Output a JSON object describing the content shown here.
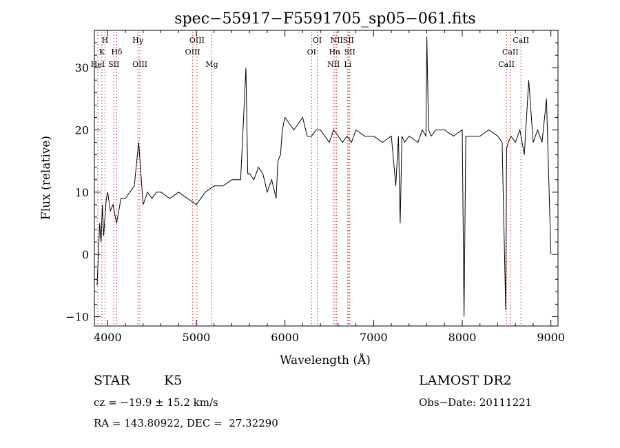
{
  "chart_data": {
    "type": "line",
    "title": "spec−55917−F5591705_sp05−061.fits",
    "xlabel": "Wavelength (Å)",
    "ylabel": "Flux (relative)",
    "xlim": [
      3850,
      9080
    ],
    "ylim": [
      -11.5,
      36
    ],
    "x_ticks": [
      4000,
      5000,
      6000,
      7000,
      8000,
      9000
    ],
    "y_ticks": [
      -10,
      0,
      10,
      20,
      30
    ],
    "x_tick_labels": [
      "4000",
      "5000",
      "6000",
      "7000",
      "8000",
      "9000"
    ],
    "y_tick_labels": [
      "−10",
      "0",
      "10",
      "20",
      "30"
    ],
    "grid": false,
    "line_color": "#000000",
    "marker_color": "#cc2222",
    "spectral_lines": [
      {
        "label": "H",
        "x": 3970,
        "row": 0
      },
      {
        "label": "K",
        "x": 3934,
        "row": 1
      },
      {
        "label": "HeI",
        "x": 3889,
        "row": 2
      },
      {
        "label": "Hδ",
        "x": 4102,
        "row": 1
      },
      {
        "label": "SII",
        "x": 4069,
        "row": 2
      },
      {
        "label": "Hγ",
        "x": 4341,
        "row": 0
      },
      {
        "label": "OIII",
        "x": 4363,
        "row": 2
      },
      {
        "label": "OIII",
        "x": 5007,
        "row": 0
      },
      {
        "label": "OIII",
        "x": 4959,
        "row": 1
      },
      {
        "label": "Mg",
        "x": 5175,
        "row": 2
      },
      {
        "label": "OI",
        "x": 6364,
        "row": 0
      },
      {
        "label": "OI",
        "x": 6300,
        "row": 1
      },
      {
        "label": "NII",
        "x": 6583,
        "row": 0
      },
      {
        "label": "SII",
        "x": 6716,
        "row": 0
      },
      {
        "label": "Hα",
        "x": 6563,
        "row": 1
      },
      {
        "label": "SII",
        "x": 6731,
        "row": 1
      },
      {
        "label": "NII",
        "x": 6548,
        "row": 2
      },
      {
        "label": "Li",
        "x": 6708,
        "row": 2
      },
      {
        "label": "CaII",
        "x": 8662,
        "row": 0
      },
      {
        "label": "CaII",
        "x": 8542,
        "row": 1
      },
      {
        "label": "CaII",
        "x": 8498,
        "row": 2
      }
    ],
    "series": [
      {
        "x": [
          3880,
          3895,
          3910,
          3925,
          3940,
          3955,
          3970,
          3985,
          4000,
          4030,
          4060,
          4100,
          4150,
          4200,
          4250,
          4300,
          4350,
          4400,
          4450,
          4500,
          4550,
          4600,
          4700,
          4800,
          4900,
          5000,
          5100,
          5200,
          5300,
          5400,
          5500,
          5560,
          5580,
          5600,
          5650,
          5700,
          5750,
          5800,
          5850,
          5900,
          5920,
          5950,
          5970,
          6000,
          6050,
          6100,
          6150,
          6200,
          6250,
          6300,
          6350,
          6400,
          6450,
          6500,
          6550,
          6600,
          6650,
          6700,
          6750,
          6800,
          6900,
          7000,
          7100,
          7200,
          7250,
          7280,
          7300,
          7320,
          7350,
          7400,
          7500,
          7550,
          7590,
          7600,
          7620,
          7650,
          7700,
          7800,
          7900,
          8000,
          8020,
          8040,
          8100,
          8200,
          8300,
          8400,
          8450,
          8490,
          8500,
          8520,
          8550,
          8600,
          8650,
          8700,
          8750,
          8800,
          8850,
          8900,
          8950,
          9000
        ],
        "y": [
          -5,
          0,
          5,
          2,
          8,
          3,
          6,
          9,
          10,
          7,
          8,
          5,
          9,
          9,
          10,
          11,
          18,
          8,
          10,
          9,
          10,
          10,
          9,
          10,
          9,
          8,
          10,
          11,
          11,
          12,
          12,
          30,
          13,
          13,
          12,
          14,
          13,
          10,
          12,
          9,
          15,
          16,
          20,
          22,
          21,
          20,
          21,
          22,
          19,
          19,
          20,
          20,
          19,
          18,
          20,
          19,
          18,
          19,
          18,
          20,
          19,
          19,
          18,
          19,
          11,
          19,
          5,
          19,
          18,
          19,
          18,
          20,
          19,
          35,
          20,
          19,
          20,
          20,
          19,
          20,
          -10,
          19,
          19,
          19,
          20,
          19,
          18,
          -9,
          17,
          18,
          19,
          18,
          20,
          16,
          28,
          18,
          20,
          18,
          25,
          0
        ]
      }
    ],
    "annotations": {
      "class": "STAR",
      "subclass": "K5",
      "survey": "LAMOST DR2",
      "cz": "cz = −19.9 ± 15.2 km/s",
      "obs_date": "Obs−Date: 20111221",
      "coords": "RA = 143.80922, DEC =  27.32290"
    }
  }
}
